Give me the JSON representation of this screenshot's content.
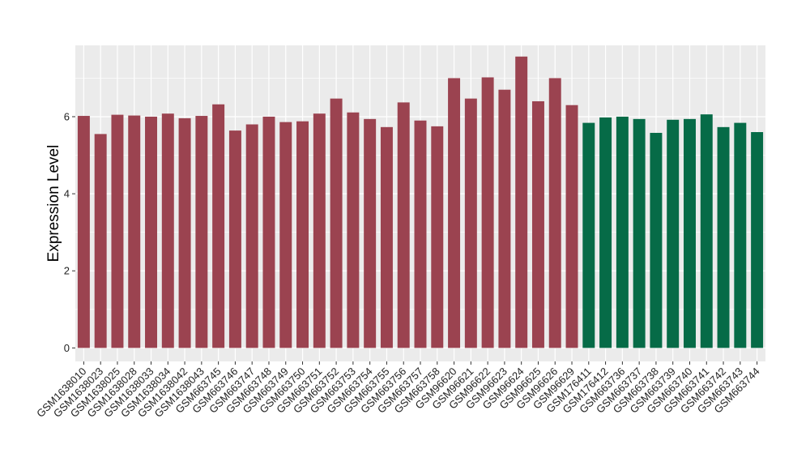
{
  "chart_data": {
    "type": "bar",
    "title": "",
    "xlabel": "",
    "ylabel": "Expression Level",
    "ylim": [
      -0.35,
      7.85
    ],
    "yticks": [
      0,
      2,
      4,
      6
    ],
    "grid": true,
    "panel_color": "#EBEBEB",
    "series": [
      {
        "color": "#9B4350",
        "categories": [
          "GSM1638010",
          "GSM1638023",
          "GSM1638025",
          "GSM1638028",
          "GSM1638033",
          "GSM1638034",
          "GSM1638042",
          "GSM1638043",
          "GSM663745",
          "GSM663746",
          "GSM663747",
          "GSM663748",
          "GSM663749",
          "GSM663750",
          "GSM663751",
          "GSM663752",
          "GSM663753",
          "GSM663754",
          "GSM663755",
          "GSM663756",
          "GSM663757",
          "GSM663758",
          "GSM96620",
          "GSM96621",
          "GSM96622",
          "GSM96623",
          "GSM96624",
          "GSM96625",
          "GSM96626",
          "GSM96629"
        ],
        "values": [
          6.02,
          5.55,
          6.05,
          6.03,
          6.0,
          6.08,
          5.96,
          6.02,
          6.32,
          5.64,
          5.8,
          6.0,
          5.86,
          5.88,
          6.08,
          6.47,
          6.11,
          5.94,
          5.73,
          6.37,
          5.9,
          5.75,
          7.0,
          6.47,
          7.02,
          6.7,
          7.56,
          6.4,
          7.0,
          6.3
        ]
      },
      {
        "color": "#066B47",
        "categories": [
          "GSM176411",
          "GSM176412",
          "GSM663736",
          "GSM663737",
          "GSM663738",
          "GSM663739",
          "GSM663740",
          "GSM663741",
          "GSM663742",
          "GSM663743",
          "GSM663744"
        ],
        "values": [
          5.84,
          5.98,
          6.0,
          5.94,
          5.58,
          5.92,
          5.94,
          6.06,
          5.73,
          5.84,
          5.6
        ]
      }
    ]
  }
}
